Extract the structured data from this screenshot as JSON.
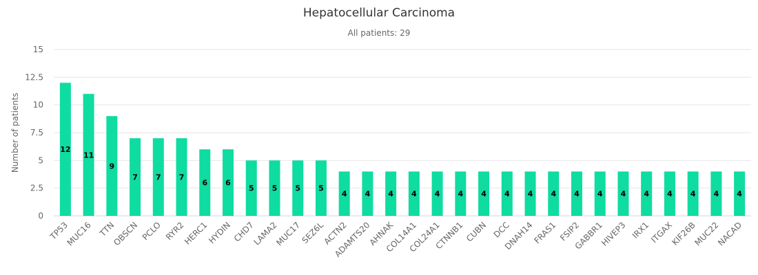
{
  "chart_data": {
    "type": "bar",
    "title": "Hepatocellular Carcinoma",
    "subtitle": "All patients: 29",
    "xlabel": "",
    "ylabel": "Number of patients",
    "ylim": [
      0,
      15
    ],
    "yticks": [
      "0",
      "2.5",
      "5",
      "7.5",
      "10",
      "12.5",
      "15"
    ],
    "grid": true,
    "bar_color": "#0fdca0",
    "categories": [
      "TP53",
      "MUC16",
      "TTN",
      "OBSCN",
      "PCLO",
      "RYR2",
      "HERC1",
      "HYDIN",
      "CHD7",
      "LAMA2",
      "MUC17",
      "SEZ6L",
      "ACTN2",
      "ADAMTS20",
      "AHNAK",
      "COL14A1",
      "COL24A1",
      "CTNNB1",
      "CUBN",
      "DCC",
      "DNAH14",
      "FRAS1",
      "FSIP2",
      "GABBR1",
      "HIVEP3",
      "IRX1",
      "ITGAX",
      "KIF26B",
      "MUC22",
      "NACAD"
    ],
    "values": [
      12,
      11,
      9,
      7,
      7,
      7,
      6,
      6,
      5,
      5,
      5,
      5,
      4,
      4,
      4,
      4,
      4,
      4,
      4,
      4,
      4,
      4,
      4,
      4,
      4,
      4,
      4,
      4,
      4,
      4
    ]
  }
}
